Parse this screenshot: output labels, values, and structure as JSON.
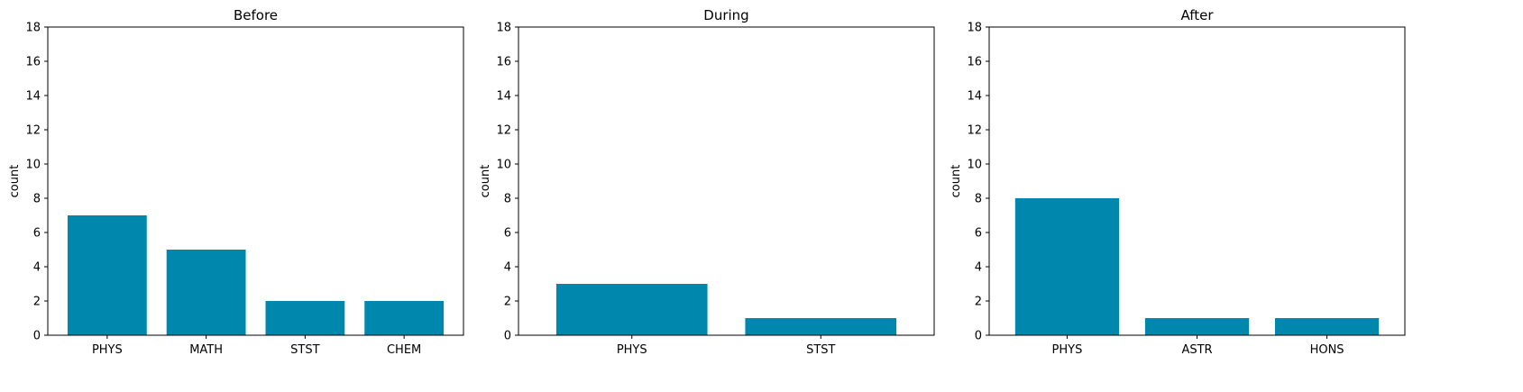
{
  "chart_data": [
    {
      "type": "bar",
      "title": "Before",
      "categories": [
        "PHYS",
        "MATH",
        "STST",
        "CHEM"
      ],
      "values": [
        7,
        5,
        2,
        2
      ],
      "xlabel": "",
      "ylabel": "count",
      "ylim": [
        0,
        18
      ],
      "yticks": [
        0,
        2,
        4,
        6,
        8,
        10,
        12,
        14,
        16,
        18
      ],
      "grid": false,
      "bar_color": "#0087ae"
    },
    {
      "type": "bar",
      "title": "During",
      "categories": [
        "PHYS",
        "STST"
      ],
      "values": [
        3,
        1
      ],
      "xlabel": "",
      "ylabel": "count",
      "ylim": [
        0,
        18
      ],
      "yticks": [
        0,
        2,
        4,
        6,
        8,
        10,
        12,
        14,
        16,
        18
      ],
      "grid": false,
      "bar_color": "#0087ae"
    },
    {
      "type": "bar",
      "title": "After",
      "categories": [
        "PHYS",
        "ASTR",
        "HONS"
      ],
      "values": [
        8,
        1,
        1
      ],
      "xlabel": "",
      "ylabel": "count",
      "ylim": [
        0,
        18
      ],
      "yticks": [
        0,
        2,
        4,
        6,
        8,
        10,
        12,
        14,
        16,
        18
      ],
      "grid": false,
      "bar_color": "#0087ae"
    }
  ]
}
